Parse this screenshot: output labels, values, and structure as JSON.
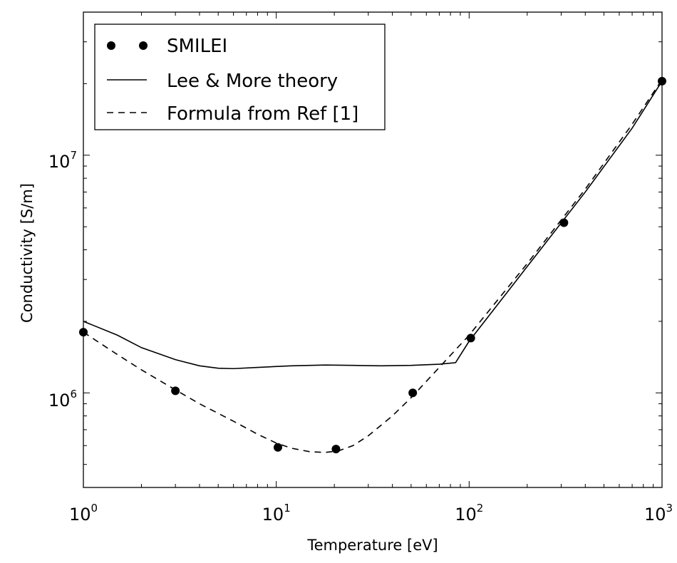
{
  "chart_data": {
    "type": "line",
    "xlabel": "Temperature [eV]",
    "ylabel": "Conductivity [S/m]",
    "xscale": "log",
    "yscale": "log",
    "xlim": [
      1,
      1000
    ],
    "ylim": [
      400000,
      40000000
    ],
    "grid": false,
    "legend_position": "top-left",
    "x_ticks": [
      {
        "base": "10",
        "exp": "0",
        "value": 1
      },
      {
        "base": "10",
        "exp": "1",
        "value": 10
      },
      {
        "base": "10",
        "exp": "2",
        "value": 100
      },
      {
        "base": "10",
        "exp": "3",
        "value": 1000
      }
    ],
    "y_ticks": [
      {
        "base": "10",
        "exp": "6",
        "value": 1000000
      },
      {
        "base": "10",
        "exp": "7",
        "value": 10000000
      }
    ],
    "series": [
      {
        "name": "SMILEI",
        "style": "markers",
        "color": "#000000",
        "points": [
          [
            1.0,
            1800000
          ],
          [
            3.0,
            1020000
          ],
          [
            10.2,
            590000
          ],
          [
            20.4,
            580000
          ],
          [
            51,
            1000000
          ],
          [
            102,
            1700000
          ],
          [
            310,
            5200000
          ],
          [
            1000,
            20500000
          ]
        ]
      },
      {
        "name": "Lee & More theory",
        "style": "solid",
        "color": "#000000",
        "points": [
          [
            1.0,
            2000000
          ],
          [
            1.5,
            1750000
          ],
          [
            2,
            1550000
          ],
          [
            3,
            1380000
          ],
          [
            4,
            1300000
          ],
          [
            5,
            1270000
          ],
          [
            6,
            1265000
          ],
          [
            8,
            1280000
          ],
          [
            12,
            1300000
          ],
          [
            18,
            1310000
          ],
          [
            25,
            1305000
          ],
          [
            35,
            1300000
          ],
          [
            50,
            1305000
          ],
          [
            70,
            1320000
          ],
          [
            85,
            1340000
          ],
          [
            100,
            1650000
          ],
          [
            200,
            3400000
          ],
          [
            400,
            7000000
          ],
          [
            700,
            13000000
          ],
          [
            1000,
            20500000
          ]
        ]
      },
      {
        "name": "Formula from Ref [1]",
        "style": "dashed",
        "color": "#000000",
        "points": [
          [
            1.0,
            1800000
          ],
          [
            1.5,
            1450000
          ],
          [
            2,
            1250000
          ],
          [
            3,
            1030000
          ],
          [
            4,
            900000
          ],
          [
            6,
            760000
          ],
          [
            8,
            670000
          ],
          [
            10,
            615000
          ],
          [
            12,
            585000
          ],
          [
            15,
            565000
          ],
          [
            18,
            562000
          ],
          [
            21,
            570000
          ],
          [
            25,
            600000
          ],
          [
            30,
            660000
          ],
          [
            40,
            800000
          ],
          [
            51,
            970000
          ],
          [
            70,
            1280000
          ],
          [
            100,
            1750000
          ],
          [
            200,
            3500000
          ],
          [
            400,
            7200000
          ],
          [
            700,
            13500000
          ],
          [
            1000,
            20800000
          ]
        ]
      }
    ]
  }
}
